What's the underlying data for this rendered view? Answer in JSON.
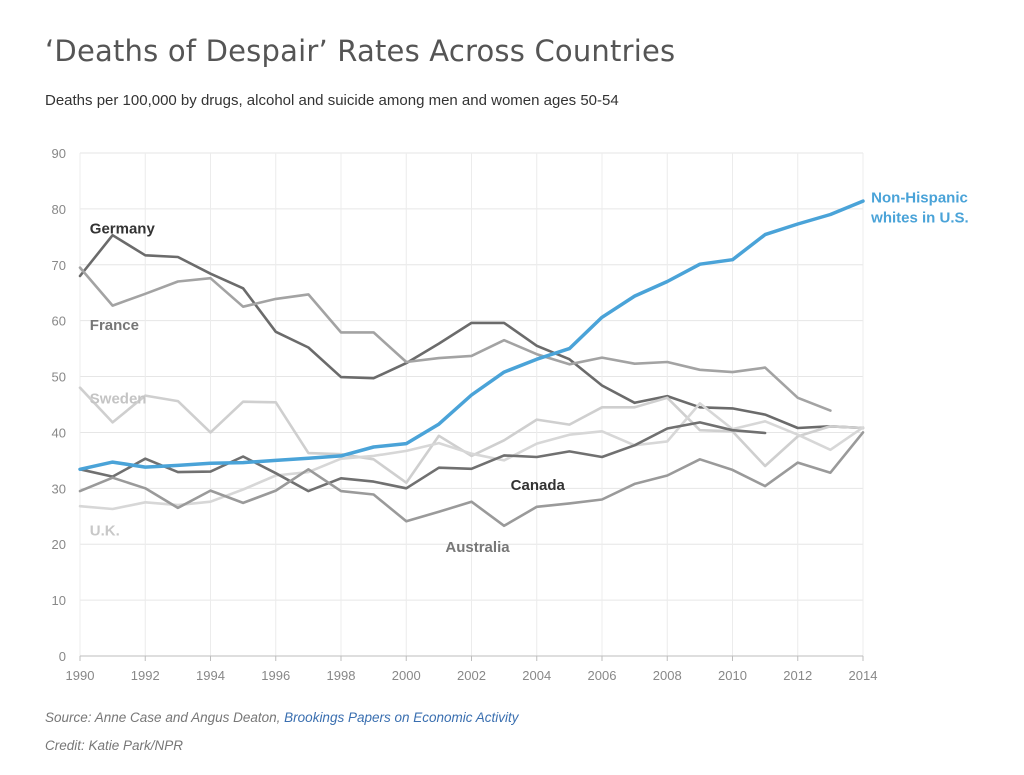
{
  "title": "‘Deaths of Despair’ Rates Across Countries",
  "subtitle": "Deaths per 100,000 by drugs, alcohol and suicide among men and women ages 50-54",
  "source_prefix": "Source: Anne Case and Angus Deaton, ",
  "source_link": "Brookings Papers on Economic Activity",
  "credit": "Credit: Katie Park/NPR",
  "chart_data": {
    "type": "line",
    "xlim": [
      1990,
      2014
    ],
    "ylim": [
      0,
      90
    ],
    "x_ticks": [
      1990,
      1992,
      1994,
      1996,
      1998,
      2000,
      2002,
      2004,
      2006,
      2008,
      2010,
      2012,
      2014
    ],
    "y_ticks": [
      0,
      10,
      20,
      30,
      40,
      50,
      60,
      70,
      80,
      90
    ],
    "grid": true,
    "series": [
      {
        "name": "Germany",
        "color": "#6b6b6b",
        "label_color": "#333333",
        "label_at": [
          1990.3,
          76.5
        ],
        "x": [
          1990,
          1991,
          1992,
          1993,
          1994,
          1995,
          1996,
          1997,
          1998,
          1999,
          2000,
          2001,
          2002,
          2003,
          2004,
          2005,
          2006,
          2007,
          2008,
          2009,
          2010,
          2011,
          2012,
          2013,
          2014
        ],
        "y": [
          68,
          75.3,
          71.7,
          71.4,
          68.4,
          65.8,
          58,
          55.2,
          49.9,
          49.7,
          52.4,
          55.9,
          59.6,
          59.6,
          55.5,
          53.1,
          48.4,
          45.3,
          46.5,
          44.5,
          44.3,
          43.2,
          40.8,
          41.1,
          40.8
        ]
      },
      {
        "name": "France",
        "color": "#a3a3a3",
        "label_color": "#777777",
        "label_at": [
          1990.3,
          59.2
        ],
        "x": [
          1990,
          1991,
          1992,
          1993,
          1994,
          1995,
          1996,
          1997,
          1998,
          1999,
          2000,
          2001,
          2002,
          2003,
          2004,
          2005,
          2006,
          2007,
          2008,
          2009,
          2010,
          2011,
          2012,
          2013
        ],
        "y": [
          69.5,
          62.7,
          64.8,
          67,
          67.6,
          62.5,
          63.9,
          64.7,
          57.9,
          57.9,
          52.6,
          53.3,
          53.7,
          56.5,
          54,
          52.2,
          53.4,
          52.3,
          52.6,
          51.2,
          50.8,
          51.6,
          46.2,
          43.9
        ]
      },
      {
        "name": "Sweden",
        "color": "#cfcfcf",
        "label_color": "#c4c4c4",
        "label_at": [
          1990.3,
          46.1
        ],
        "x": [
          1990,
          1991,
          1992,
          1993,
          1994,
          1995,
          1996,
          1997,
          1998,
          1999,
          2000,
          2001,
          2002,
          2003,
          2004,
          2005,
          2006,
          2007,
          2008,
          2009,
          2010,
          2011,
          2012,
          2013,
          2014
        ],
        "y": [
          48,
          41.8,
          46.6,
          45.6,
          40,
          45.5,
          45.4,
          36.3,
          36.1,
          35.2,
          31,
          39.4,
          35.8,
          38.6,
          42.3,
          41.4,
          44.5,
          44.5,
          46.2,
          40.4,
          40.2,
          34,
          39.3,
          41.1,
          40.8
        ]
      },
      {
        "name": "U.K.",
        "color": "#d7d7d7",
        "label_color": "#c8c8c8",
        "label_at": [
          1990.3,
          22.5
        ],
        "x": [
          1990,
          1991,
          1992,
          1993,
          1994,
          1995,
          1996,
          1997,
          1998,
          1999,
          2000,
          2001,
          2002,
          2003,
          2004,
          2005,
          2006,
          2007,
          2008,
          2009,
          2010,
          2011,
          2012,
          2013,
          2014
        ],
        "y": [
          26.8,
          26.3,
          27.5,
          27,
          27.6,
          29.8,
          32.3,
          32.9,
          35.3,
          35.8,
          36.7,
          38.1,
          36.2,
          35,
          38,
          39.6,
          40.2,
          37.7,
          38.4,
          45.2,
          40.6,
          42,
          39.6,
          36.9,
          40.9
        ]
      },
      {
        "name": "Canada",
        "color": "#707070",
        "label_color": "#333333",
        "label_at": [
          2003.2,
          30.6
        ],
        "x": [
          1990,
          1991,
          1992,
          1993,
          1994,
          1995,
          1996,
          1997,
          1998,
          1999,
          2000,
          2001,
          2002,
          2003,
          2004,
          2005,
          2006,
          2007,
          2008,
          2009,
          2010,
          2011
        ],
        "y": [
          33.4,
          32.1,
          35.3,
          32.9,
          33,
          35.7,
          32.7,
          29.5,
          31.8,
          31.2,
          30,
          33.7,
          33.5,
          35.9,
          35.6,
          36.6,
          35.6,
          37.7,
          40.7,
          41.8,
          40.4,
          39.9
        ]
      },
      {
        "name": "Australia",
        "color": "#9a9a9a",
        "label_color": "#777777",
        "label_at": [
          2001.2,
          19.5
        ],
        "x": [
          1990,
          1991,
          1992,
          1993,
          1994,
          1995,
          1996,
          1997,
          1998,
          1999,
          2000,
          2001,
          2002,
          2003,
          2004,
          2005,
          2006,
          2007,
          2008,
          2009,
          2010,
          2011,
          2012,
          2013,
          2014
        ],
        "y": [
          29.5,
          31.9,
          30,
          26.5,
          29.6,
          27.4,
          29.6,
          33.4,
          29.5,
          28.9,
          24.1,
          25.8,
          27.6,
          23.3,
          26.7,
          27.3,
          28,
          30.8,
          32.3,
          35.2,
          33.3,
          30.4,
          34.6,
          32.8,
          40
        ]
      },
      {
        "name": "Non-Hispanic whites in U.S.",
        "label_lines": [
          "Non-Hispanic",
          "whites in U.S."
        ],
        "color": "#4aa3d8",
        "label_color": "#4aa3d8",
        "label_at": [
          2014.25,
          82
        ],
        "x": [
          1990,
          1991,
          1992,
          1993,
          1994,
          1995,
          1996,
          1997,
          1998,
          1999,
          2000,
          2001,
          2002,
          2003,
          2004,
          2005,
          2006,
          2007,
          2008,
          2009,
          2010,
          2011,
          2012,
          2013,
          2014
        ],
        "y": [
          33.4,
          34.7,
          33.8,
          34.1,
          34.5,
          34.6,
          35,
          35.4,
          35.8,
          37.4,
          38,
          41.5,
          46.7,
          50.8,
          53.1,
          55,
          60.6,
          64.4,
          67,
          70.1,
          70.9,
          75.4,
          77.3,
          79,
          81.4
        ]
      }
    ]
  }
}
